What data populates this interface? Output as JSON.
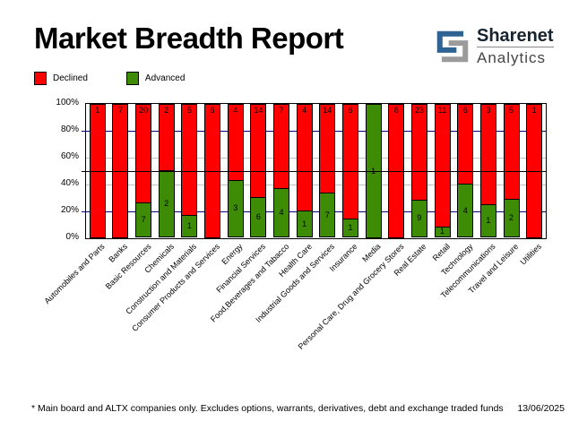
{
  "header": {
    "title": "Market Breadth Report",
    "logo_name": "Sharenet",
    "logo_sub": "Analytics",
    "logo_blue": "#2f6391",
    "logo_gray": "#9b9b9b"
  },
  "legend": [
    {
      "label": "Declined",
      "color": "#ff0000"
    },
    {
      "label": "Advanced",
      "color": "#3e8b06"
    }
  ],
  "footer": {
    "note": "* Main board and ALTX companies only. Excludes options, warrants, derivatives, debt and exchange traded funds",
    "date": "13/06/2025"
  },
  "chart_data": {
    "type": "bar",
    "variant": "100%-stacked-column",
    "categories": [
      "Automobiles and Parts",
      "Banks",
      "Basic Resources",
      "Chemicals",
      "Construction and Materials",
      "Consumer Products and Services",
      "Energy",
      "Financial Services",
      "Food,Beverages and Tabacco",
      "Health Care",
      "Industrial Goods and Services",
      "Insurance",
      "Media",
      "Personal Care, Drug and Grocery Stores",
      "Real Estate",
      "Retail",
      "Technology",
      "Telecommunications",
      "Travel and Leisure",
      "Utilities"
    ],
    "series": [
      {
        "name": "Declined",
        "color": "#ff0000",
        "values": [
          1,
          7,
          20,
          2,
          5,
          6,
          4,
          14,
          7,
          4,
          14,
          6,
          0,
          8,
          23,
          11,
          6,
          3,
          5,
          1
        ]
      },
      {
        "name": "Advanced",
        "color": "#3e8b06",
        "values": [
          0,
          0,
          7,
          2,
          1,
          0,
          3,
          6,
          4,
          1,
          7,
          1,
          1,
          0,
          9,
          1,
          4,
          1,
          2,
          0
        ]
      }
    ],
    "y_ticks": [
      "0%",
      "20%",
      "40%",
      "60%",
      "80%",
      "100%"
    ],
    "ylim": [
      0,
      100
    ],
    "reference_line_pct": 50,
    "gridlines": {
      "navy_pct": [
        20,
        80
      ],
      "silver_pct": [
        40,
        60
      ],
      "navy_color": "#000080",
      "silver_color": "#c0c0c0"
    },
    "legend_position": "top-left",
    "value_labels": "inside-segments"
  }
}
